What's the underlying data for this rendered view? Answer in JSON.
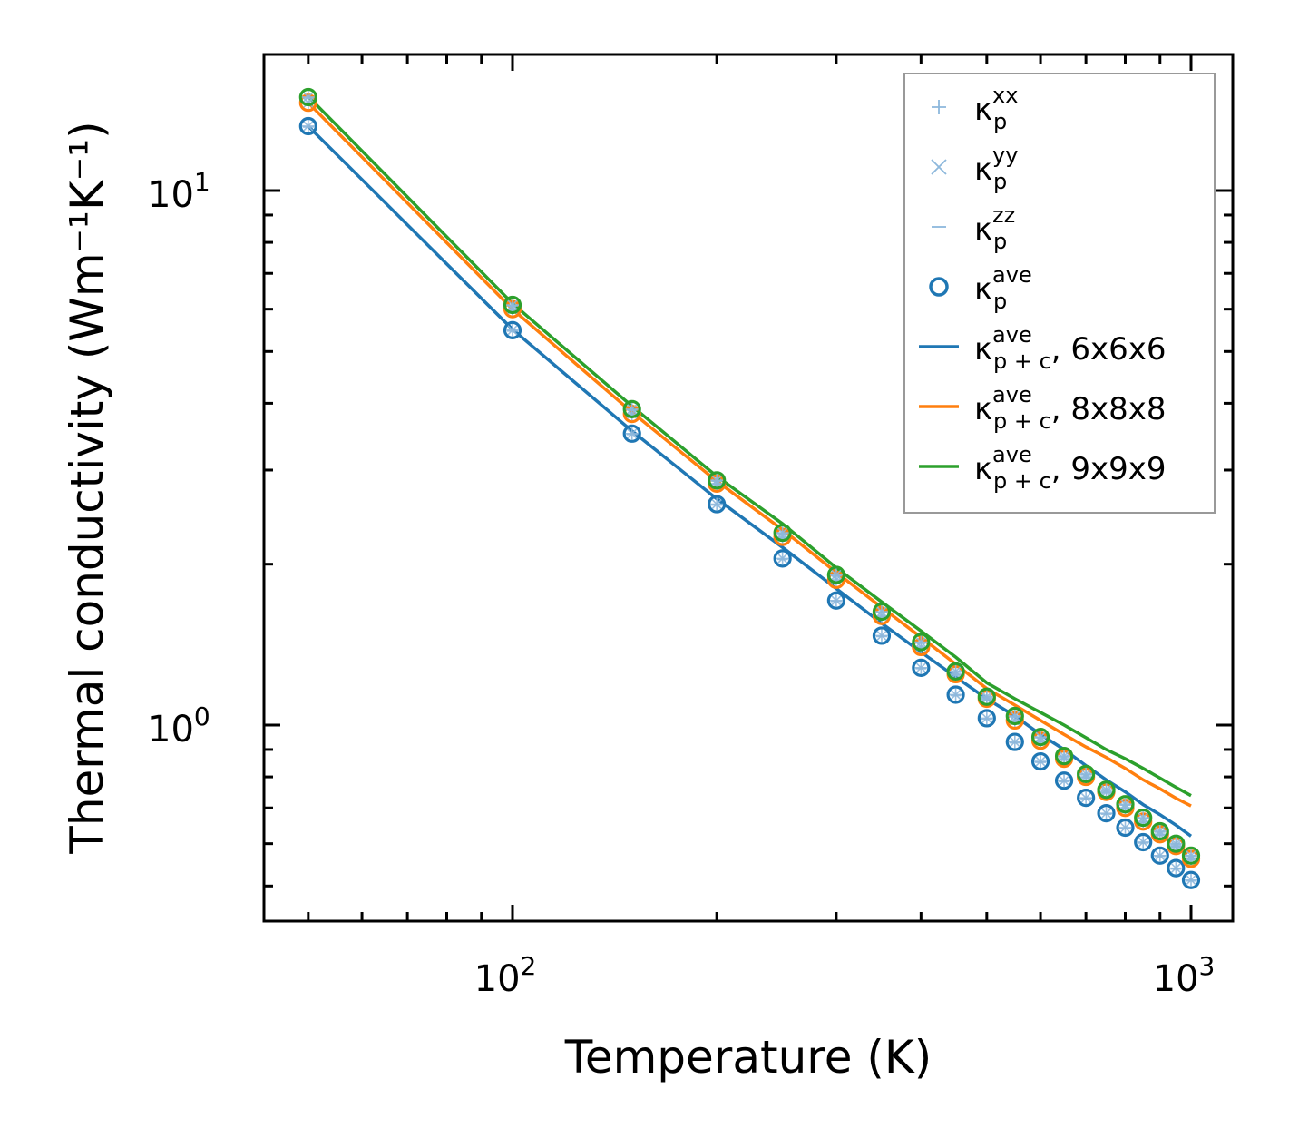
{
  "chart_data": {
    "type": "line",
    "title": "",
    "xlabel": "Temperature (K)",
    "ylabel": "Thermal conductivity (Wm⁻¹K⁻¹)",
    "xscale": "log",
    "yscale": "log",
    "xlim": [
      43,
      1151
    ],
    "ylim": [
      0.43,
      18.0
    ],
    "grid": false,
    "legend_placement": "top-right",
    "x_major_ticks": [
      {
        "value": 100,
        "base": "10",
        "exp": "2"
      },
      {
        "value": 1000,
        "base": "10",
        "exp": "3"
      }
    ],
    "y_major_ticks": [
      {
        "value": 1,
        "base": "10",
        "exp": "0"
      },
      {
        "value": 10,
        "base": "10",
        "exp": "1"
      }
    ],
    "x": [
      50,
      100,
      150,
      200,
      250,
      300,
      350,
      400,
      450,
      500,
      550,
      600,
      650,
      700,
      750,
      800,
      850,
      900,
      950,
      1000
    ],
    "colors": {
      "6x6x6": "#1f77b4",
      "8x8x8": "#ff7f0e",
      "9x9x9": "#2ca02c",
      "component": "#8db8dc"
    },
    "marker_series": [
      {
        "name": "κp ave, 6x6x6",
        "mesh": "6x6x6",
        "values": [
          13.2,
          5.48,
          3.51,
          2.59,
          2.05,
          1.71,
          1.47,
          1.28,
          1.14,
          1.03,
          0.93,
          0.855,
          0.787,
          0.731,
          0.684,
          0.643,
          0.604,
          0.57,
          0.54,
          0.513
        ]
      },
      {
        "name": "κp ave, 8x8x8",
        "mesh": "8x8x8",
        "values": [
          14.6,
          6.0,
          3.82,
          2.83,
          2.25,
          1.87,
          1.6,
          1.4,
          1.245,
          1.12,
          1.02,
          0.935,
          0.865,
          0.8,
          0.75,
          0.7,
          0.66,
          0.625,
          0.594,
          0.562
        ]
      },
      {
        "name": "κp ave, 9x9x9",
        "mesh": "9x9x9",
        "values": [
          14.96,
          6.11,
          3.9,
          2.87,
          2.29,
          1.91,
          1.63,
          1.43,
          1.26,
          1.13,
          1.04,
          0.95,
          0.875,
          0.81,
          0.757,
          0.711,
          0.671,
          0.633,
          0.6,
          0.57
        ]
      }
    ],
    "line_series": [
      {
        "name": "κp+c ave, 6x6x6",
        "mesh": "6x6x6",
        "values": [
          13.2,
          5.5,
          3.55,
          2.65,
          2.15,
          1.8,
          1.55,
          1.37,
          1.23,
          1.12,
          1.04,
          0.96,
          0.9,
          0.84,
          0.79,
          0.75,
          0.71,
          0.68,
          0.65,
          0.62
        ]
      },
      {
        "name": "κp+c ave, 8x8x8",
        "mesh": "8x8x8",
        "values": [
          14.6,
          6.0,
          3.85,
          2.86,
          2.32,
          1.93,
          1.66,
          1.46,
          1.3,
          1.17,
          1.09,
          1.02,
          0.96,
          0.91,
          0.87,
          0.83,
          0.79,
          0.76,
          0.73,
          0.706
        ]
      },
      {
        "name": "κp+c ave, 9x9x9",
        "mesh": "9x9x9",
        "values": [
          15.0,
          6.15,
          3.95,
          2.92,
          2.38,
          1.97,
          1.7,
          1.5,
          1.34,
          1.2,
          1.12,
          1.056,
          1.0,
          0.947,
          0.9,
          0.865,
          0.83,
          0.796,
          0.765,
          0.738
        ]
      }
    ],
    "legend": [
      {
        "marker": "plus",
        "color": "#8db8dc",
        "base": "κ",
        "sub": "p",
        "sup": "xx",
        "suffix": ""
      },
      {
        "marker": "cross",
        "color": "#8db8dc",
        "base": "κ",
        "sub": "p",
        "sup": "yy",
        "suffix": ""
      },
      {
        "marker": "minus",
        "color": "#8db8dc",
        "base": "κ",
        "sub": "p",
        "sup": "zz",
        "suffix": ""
      },
      {
        "marker": "circle",
        "color": "#1f77b4",
        "base": "κ",
        "sub": "p",
        "sup": "ave",
        "suffix": ""
      },
      {
        "marker": "line",
        "color": "#1f77b4",
        "base": "κ",
        "sub": "p + c",
        "sup": "ave",
        "suffix": ", 6x6x6"
      },
      {
        "marker": "line",
        "color": "#ff7f0e",
        "base": "κ",
        "sub": "p + c",
        "sup": "ave",
        "suffix": ", 8x8x8"
      },
      {
        "marker": "line",
        "color": "#2ca02c",
        "base": "κ",
        "sub": "p + c",
        "sup": "ave",
        "suffix": ", 9x9x9"
      }
    ]
  }
}
